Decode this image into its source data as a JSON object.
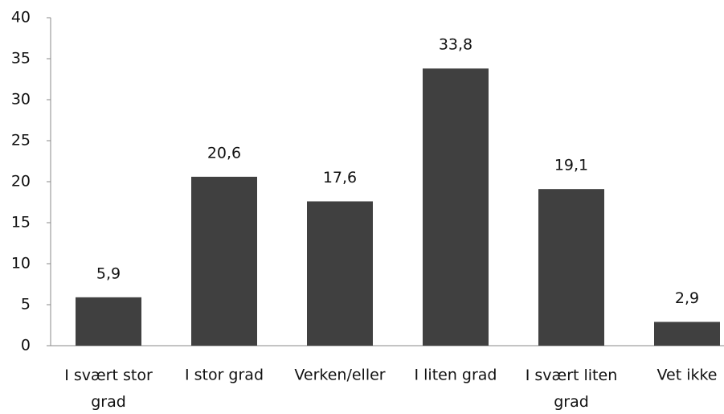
{
  "chart_data": {
    "type": "bar",
    "categories": [
      "I svært stor grad",
      "I stor grad",
      "Verken/eller",
      "I liten grad",
      "I svært liten grad",
      "Vet ikke"
    ],
    "values": [
      5.9,
      20.6,
      17.6,
      33.8,
      19.1,
      2.9
    ],
    "value_labels": [
      "5,9",
      "20,6",
      "17,6",
      "33,8",
      "19,1",
      "2,9"
    ],
    "color": "#404040",
    "ylim": [
      0,
      40
    ],
    "yticks": [
      0,
      5,
      10,
      15,
      20,
      25,
      30,
      35,
      40
    ],
    "grid": false
  }
}
